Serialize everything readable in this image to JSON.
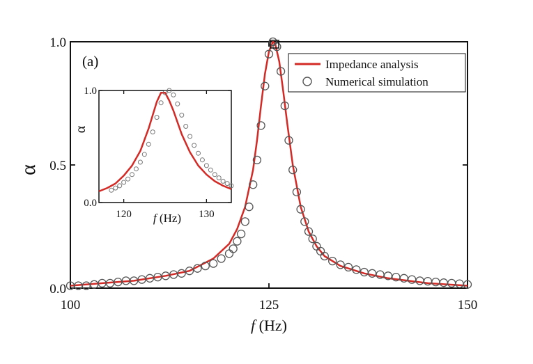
{
  "chart_data": [
    {
      "type": "line",
      "panel_label": "(a)",
      "xlabel_italic": "f",
      "xlabel": "(Hz)",
      "ylabel": "α",
      "xlim": [
        100,
        150
      ],
      "ylim": [
        0,
        1
      ],
      "x_ticks": [
        "100",
        "125",
        "150"
      ],
      "y_ticks": [
        "0.0",
        "0.5",
        "1.0"
      ],
      "legend_position": "top-right",
      "series": [
        {
          "name": "Impedance analysis",
          "style": "line",
          "color": "#d42a26",
          "x": [
            100,
            104,
            108,
            112,
            115,
            118,
            120,
            121,
            122,
            123,
            123.5,
            124,
            124.5,
            125,
            125.5,
            125.8,
            126.3,
            126.8,
            127.3,
            128,
            129,
            130,
            131,
            132,
            134,
            137,
            140,
            145,
            150
          ],
          "y": [
            0.01,
            0.02,
            0.03,
            0.05,
            0.07,
            0.12,
            0.18,
            0.24,
            0.33,
            0.48,
            0.6,
            0.74,
            0.87,
            0.96,
            1.0,
            0.99,
            0.92,
            0.8,
            0.67,
            0.5,
            0.33,
            0.23,
            0.17,
            0.13,
            0.09,
            0.06,
            0.04,
            0.02,
            0.01
          ]
        },
        {
          "name": "Numerical simulation",
          "style": "open-circles",
          "color": "#555555",
          "x": [
            100,
            101,
            102,
            103,
            104,
            105,
            106,
            107,
            108,
            109,
            110,
            111,
            112,
            113,
            114,
            115,
            116,
            117,
            118,
            119,
            120,
            120.5,
            121,
            121.5,
            122,
            122.5,
            123,
            123.5,
            124,
            124.5,
            125,
            125.5,
            126,
            126.5,
            127,
            127.5,
            128,
            128.5,
            129,
            129.5,
            130,
            130.5,
            131,
            131.5,
            132,
            133,
            134,
            135,
            136,
            137,
            138,
            139,
            140,
            141,
            142,
            143,
            144,
            145,
            146,
            147,
            148,
            149,
            150
          ],
          "y": [
            0.01,
            0.01,
            0.01,
            0.015,
            0.02,
            0.02,
            0.025,
            0.03,
            0.03,
            0.035,
            0.04,
            0.045,
            0.05,
            0.055,
            0.06,
            0.07,
            0.08,
            0.09,
            0.1,
            0.12,
            0.14,
            0.16,
            0.19,
            0.22,
            0.27,
            0.33,
            0.42,
            0.52,
            0.66,
            0.82,
            0.95,
            1.0,
            0.98,
            0.88,
            0.74,
            0.6,
            0.48,
            0.39,
            0.32,
            0.27,
            0.23,
            0.2,
            0.17,
            0.15,
            0.13,
            0.11,
            0.095,
            0.085,
            0.075,
            0.065,
            0.06,
            0.055,
            0.05,
            0.045,
            0.04,
            0.035,
            0.03,
            0.028,
            0.025,
            0.022,
            0.02,
            0.018,
            0.015
          ]
        }
      ]
    },
    {
      "type": "line",
      "panel": "inset",
      "xlabel_italic": "f",
      "xlabel": "(Hz)",
      "ylabel": "α",
      "xlim": [
        117,
        133
      ],
      "ylim": [
        0,
        1
      ],
      "x_ticks": [
        "120",
        "130"
      ],
      "y_ticks": [
        "0.0",
        "1.0"
      ],
      "series": [
        {
          "style": "line",
          "color": "#d42a26",
          "x": [
            117,
            118,
            119,
            120,
            121,
            122,
            123,
            123.5,
            124,
            124.5,
            125,
            125.5,
            126,
            127,
            128,
            129,
            130,
            131,
            132,
            133
          ],
          "y": [
            0.1,
            0.13,
            0.17,
            0.24,
            0.33,
            0.46,
            0.66,
            0.78,
            0.9,
            0.98,
            0.98,
            0.91,
            0.82,
            0.61,
            0.45,
            0.33,
            0.25,
            0.19,
            0.15,
            0.12
          ]
        },
        {
          "style": "open-circles",
          "color": "#777777",
          "x": [
            118.5,
            119,
            119.5,
            120,
            120.5,
            121,
            121.5,
            122,
            122.5,
            123,
            123.5,
            124,
            124.5,
            125,
            125.5,
            126,
            126.5,
            127,
            127.5,
            128,
            128.5,
            129,
            129.5,
            130,
            130.5,
            131,
            131.5,
            132,
            132.5,
            133
          ],
          "y": [
            0.11,
            0.13,
            0.15,
            0.18,
            0.21,
            0.25,
            0.3,
            0.36,
            0.43,
            0.52,
            0.63,
            0.76,
            0.89,
            0.98,
            1.0,
            0.96,
            0.88,
            0.78,
            0.68,
            0.59,
            0.51,
            0.44,
            0.38,
            0.33,
            0.29,
            0.25,
            0.22,
            0.19,
            0.17,
            0.15
          ]
        }
      ]
    }
  ]
}
